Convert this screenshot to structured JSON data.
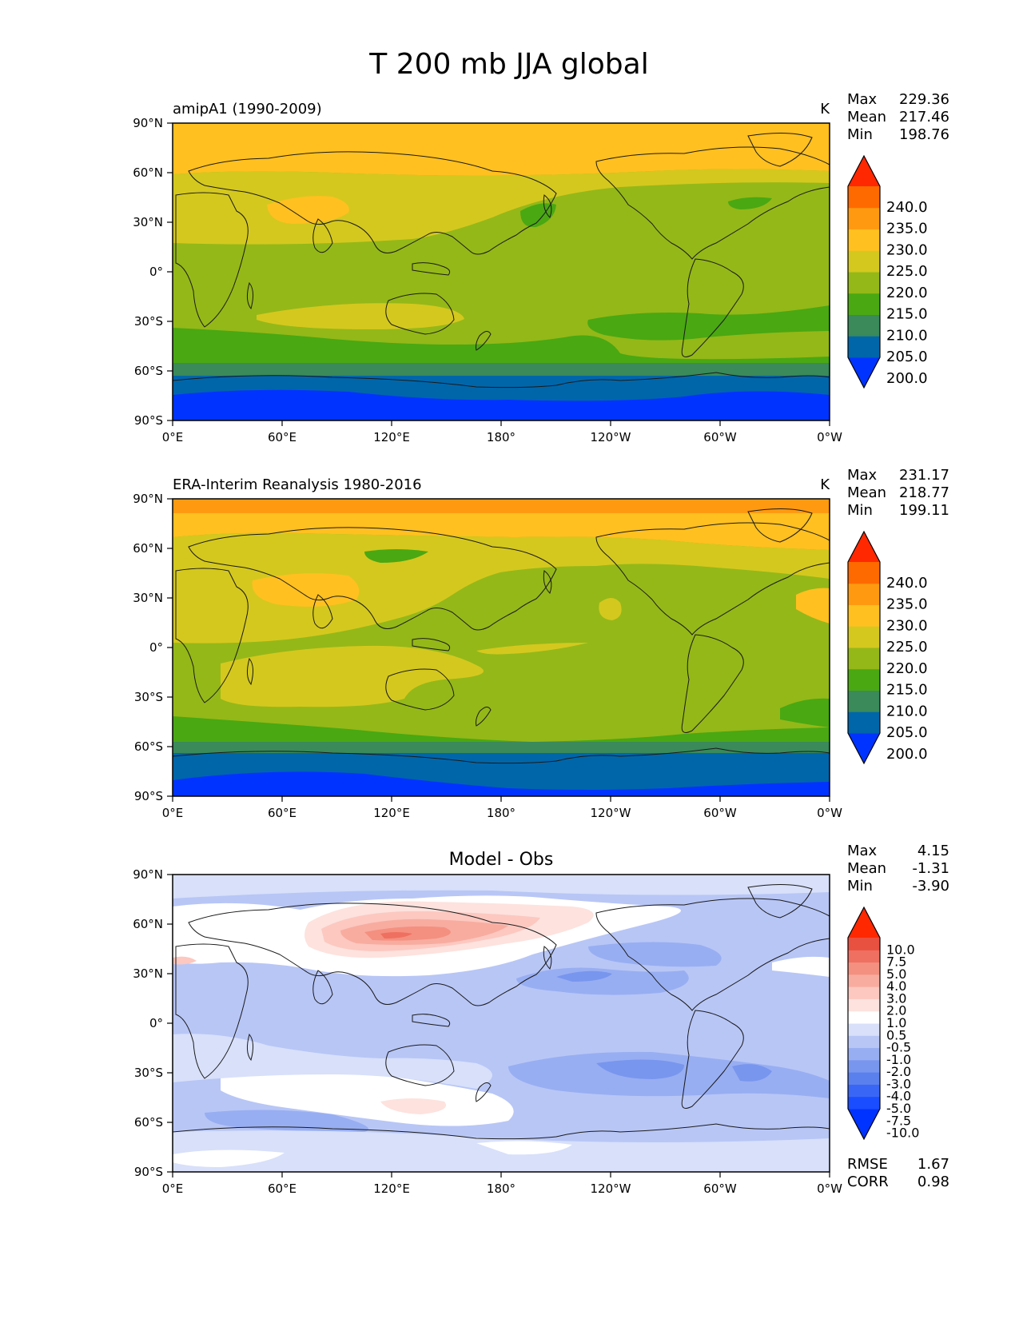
{
  "title": "T 200 mb JJA global",
  "colors": {
    "frame": "#000000",
    "coast": "#1a1a1a",
    "background": "#ffffff"
  },
  "axes": {
    "x_ticks": [
      "0°E",
      "60°E",
      "120°E",
      "180°",
      "120°W",
      "60°W",
      "0°W"
    ],
    "y_ticks": [
      "90°N",
      "60°N",
      "30°N",
      "0°",
      "30°S",
      "60°S",
      "90°S"
    ]
  },
  "chart_data": [
    {
      "type": "heatmap",
      "id": "model",
      "subtitle": "amipA1 (1990-2009)",
      "center_title": "",
      "units": "K",
      "stats": [
        {
          "label": "Max",
          "value": "229.36"
        },
        {
          "label": "Mean",
          "value": "217.46"
        },
        {
          "label": "Min",
          "value": "198.76"
        }
      ],
      "footer_stats": [],
      "colorbar": {
        "levels": [
          "240.0",
          "235.0",
          "230.0",
          "225.0",
          "220.0",
          "215.0",
          "210.0",
          "205.0",
          "200.0"
        ],
        "colors": [
          "#0033ff",
          "#0066aa",
          "#3a8a5a",
          "#4aa812",
          "#94b818",
          "#d4c81e",
          "#ffc020",
          "#ff9a10",
          "#ff6a00",
          "#ff2800"
        ],
        "extend": "both"
      },
      "x_range": [
        0,
        360
      ],
      "y_range": [
        -90,
        90
      ]
    },
    {
      "type": "heatmap",
      "id": "obs",
      "subtitle": "ERA-Interim Reanalysis 1980-2016",
      "center_title": "",
      "units": "K",
      "stats": [
        {
          "label": "Max",
          "value": "231.17"
        },
        {
          "label": "Mean",
          "value": "218.77"
        },
        {
          "label": "Min",
          "value": "199.11"
        }
      ],
      "footer_stats": [],
      "colorbar": {
        "levels": [
          "240.0",
          "235.0",
          "230.0",
          "225.0",
          "220.0",
          "215.0",
          "210.0",
          "205.0",
          "200.0"
        ],
        "colors": [
          "#0033ff",
          "#0066aa",
          "#3a8a5a",
          "#4aa812",
          "#94b818",
          "#d4c81e",
          "#ffc020",
          "#ff9a10",
          "#ff6a00",
          "#ff2800"
        ],
        "extend": "both"
      },
      "x_range": [
        0,
        360
      ],
      "y_range": [
        -90,
        90
      ]
    },
    {
      "type": "heatmap",
      "id": "diff",
      "subtitle": "",
      "center_title": "Model - Obs",
      "units": "",
      "stats": [
        {
          "label": "Max",
          "value": "4.15"
        },
        {
          "label": "Mean",
          "value": "-1.31"
        },
        {
          "label": "Min",
          "value": "-3.90"
        }
      ],
      "footer_stats": [
        {
          "label": "RMSE",
          "value": "1.67"
        },
        {
          "label": "CORR",
          "value": "0.98"
        }
      ],
      "colorbar": {
        "levels": [
          "10.0",
          "7.5",
          "5.0",
          "4.0",
          "3.0",
          "2.0",
          "1.0",
          "0.5",
          "-0.5",
          "-1.0",
          "-2.0",
          "-3.0",
          "-4.0",
          "-5.0",
          "-7.5",
          "-10.0"
        ],
        "colors": [
          "#0033ff",
          "#1a4dff",
          "#3a66f5",
          "#5a80ee",
          "#7896ee",
          "#98aef2",
          "#b8c6f6",
          "#d8e0fa",
          "#ffffff",
          "#fde2de",
          "#fcc8c0",
          "#f8aca0",
          "#f49080",
          "#ef7060",
          "#e85040",
          "#ff2800"
        ],
        "extend": "both"
      },
      "x_range": [
        0,
        360
      ],
      "y_range": [
        -90,
        90
      ]
    }
  ]
}
